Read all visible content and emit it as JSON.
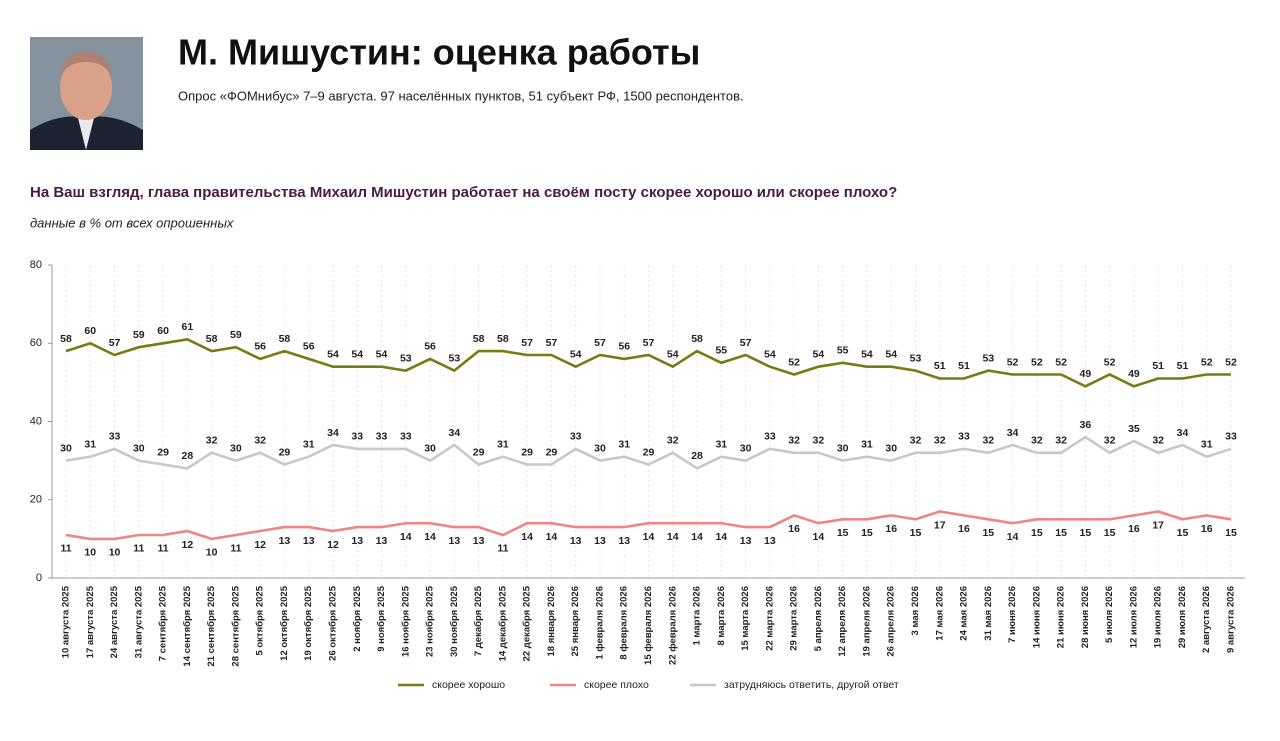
{
  "header": {
    "title": "М. Мишустин: оценка работы",
    "subtitle": "Опрос «ФОМнибус» 7–9 августа. 97 населённых пунктов, 51 субъект РФ, 1500 респондентов."
  },
  "chart_data": {
    "type": "line",
    "title": "На Ваш взгляд, глава правительства Михаил Мишустин работает на своём посту скорее хорошо или скорее плохо?",
    "subtitle": "данные в % от всех опрошенных",
    "categories": [
      "10 августа 2025",
      "17 августа 2025",
      "24 августа 2025",
      "31 августа 2025",
      "7 сентября 2025",
      "14 сентября 2025",
      "21 сентября 2025",
      "28 сентября 2025",
      "5 октября 2025",
      "12 октября 2025",
      "19 октября 2025",
      "26 октября 2025",
      "2 ноября 2025",
      "9 ноября 2025",
      "16 ноября 2025",
      "23 ноября 2025",
      "30 ноября 2025",
      "7 декабря 2025",
      "14 декабря 2025",
      "22 декабря 2025",
      "18 января 2026",
      "25 января 2026",
      "1 февраля 2026",
      "8 февраля 2026",
      "15 февраля 2026",
      "22 февраля 2026",
      "1 марта 2026",
      "8 марта 2026",
      "15 марта 2026",
      "22 марта 2026",
      "29 марта 2026",
      "5 апреля 2026",
      "12 апреля 2026",
      "19 апреля 2026",
      "26 апреля 2026",
      "3 мая 2026",
      "17 мая 2026",
      "24 мая 2026",
      "31 мая 2026",
      "7 июня 2026",
      "14 июня 2026",
      "21 июня 2026",
      "28 июня 2026",
      "5 июля 2026",
      "12 июля 2026",
      "19 июля 2026",
      "29 июля 2026",
      "2 августа 2026",
      "9 августа 2026"
    ],
    "series": [
      {
        "name": "скорее хорошо",
        "color": "#7a7a14",
        "values": [
          58,
          60,
          57,
          59,
          60,
          61,
          58,
          59,
          56,
          58,
          56,
          54,
          54,
          54,
          53,
          56,
          53,
          58,
          58,
          57,
          57,
          54,
          57,
          56,
          57,
          54,
          58,
          55,
          57,
          54,
          52,
          54,
          55,
          54,
          54,
          53,
          51,
          51,
          53,
          52,
          52,
          52,
          49,
          52,
          49,
          51,
          51,
          52,
          52
        ]
      },
      {
        "name": "скорее плохо",
        "color": "#ef8585",
        "values": [
          11,
          10,
          10,
          11,
          11,
          12,
          10,
          11,
          12,
          13,
          13,
          12,
          13,
          13,
          14,
          14,
          13,
          13,
          11,
          14,
          14,
          13,
          13,
          13,
          14,
          14,
          14,
          14,
          13,
          13,
          16,
          14,
          15,
          15,
          16,
          15,
          17,
          16,
          15,
          14,
          15,
          15,
          15,
          15,
          16,
          17,
          15,
          16,
          15
        ]
      },
      {
        "name": "затрудняюсь ответить, другой ответ",
        "color": "#c8c8c8",
        "values": [
          30,
          31,
          33,
          30,
          29,
          28,
          32,
          30,
          32,
          29,
          31,
          34,
          33,
          33,
          33,
          30,
          34,
          29,
          31,
          29,
          29,
          33,
          30,
          31,
          29,
          32,
          28,
          31,
          30,
          33,
          32,
          32,
          30,
          31,
          30,
          32,
          32,
          33,
          32,
          34,
          32,
          32,
          36,
          32,
          35,
          32,
          34,
          31,
          33
        ]
      }
    ],
    "ylim": [
      0,
      80
    ],
    "yticks": [
      0,
      20,
      40,
      60,
      80
    ],
    "grid": true,
    "legend": "bottom"
  }
}
